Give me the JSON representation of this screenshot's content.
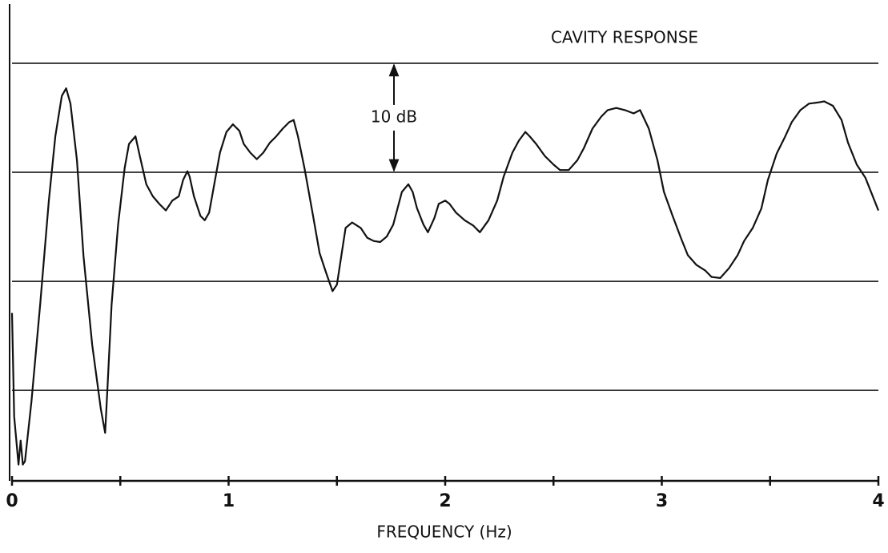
{
  "chart_data": {
    "type": "line",
    "title": "CAVITY RESPONSE",
    "xlabel": "FREQUENCY (Hz)",
    "annotation": {
      "text": "10 dB",
      "from": 0,
      "to": -10
    },
    "color": "#111111",
    "grid": true,
    "xlim": [
      0,
      4
    ],
    "xticks": [
      0,
      1,
      2,
      3,
      4
    ],
    "xminor_ticks": [
      0.5,
      1.5,
      2.5,
      3.5
    ],
    "ylim": [
      -38.3,
      5.8
    ],
    "yticks": [
      0,
      -10,
      -20,
      -30
    ],
    "x": [
      0,
      0.01,
      0.03,
      0.04,
      0.05,
      0.06,
      0.09,
      0.13,
      0.17,
      0.2,
      0.23,
      0.25,
      0.27,
      0.3,
      0.33,
      0.37,
      0.41,
      0.43,
      0.44,
      0.46,
      0.49,
      0.52,
      0.54,
      0.57,
      0.59,
      0.62,
      0.65,
      0.68,
      0.71,
      0.74,
      0.77,
      0.79,
      0.81,
      0.82,
      0.84,
      0.87,
      0.89,
      0.91,
      0.94,
      0.96,
      0.99,
      1.02,
      1.05,
      1.07,
      1.1,
      1.13,
      1.16,
      1.19,
      1.22,
      1.25,
      1.28,
      1.3,
      1.32,
      1.35,
      1.39,
      1.42,
      1.45,
      1.48,
      1.5,
      1.52,
      1.54,
      1.57,
      1.61,
      1.64,
      1.67,
      1.7,
      1.73,
      1.76,
      1.78,
      1.8,
      1.83,
      1.85,
      1.87,
      1.9,
      1.92,
      1.95,
      1.97,
      2,
      2.02,
      2.05,
      2.09,
      2.13,
      2.16,
      2.2,
      2.24,
      2.27,
      2.31,
      2.34,
      2.37,
      2.39,
      2.42,
      2.46,
      2.5,
      2.53,
      2.57,
      2.61,
      2.64,
      2.68,
      2.72,
      2.75,
      2.79,
      2.83,
      2.87,
      2.9,
      2.94,
      2.98,
      3.01,
      3.05,
      3.09,
      3.12,
      3.16,
      3.2,
      3.23,
      3.27,
      3.31,
      3.35,
      3.38,
      3.42,
      3.46,
      3.49,
      3.53,
      3.57,
      3.6,
      3.64,
      3.68,
      3.72,
      3.75,
      3.79,
      3.83,
      3.86,
      3.9,
      3.94,
      3.97,
      4
    ],
    "values": [
      -22.9,
      -32.4,
      -36.8,
      -34.6,
      -36.8,
      -36.5,
      -31.0,
      -22.1,
      -12.6,
      -6.7,
      -3.0,
      -2.3,
      -3.7,
      -8.9,
      -17.7,
      -25.8,
      -31.7,
      -33.9,
      -30.1,
      -22.1,
      -14.8,
      -9.6,
      -7.4,
      -6.7,
      -8.5,
      -11.1,
      -12.2,
      -12.9,
      -13.5,
      -12.6,
      -12.2,
      -10.7,
      -9.9,
      -10.4,
      -12.2,
      -14.0,
      -14.4,
      -13.7,
      -10.4,
      -8.2,
      -6.3,
      -5.6,
      -6.2,
      -7.4,
      -8.2,
      -8.8,
      -8.2,
      -7.3,
      -6.7,
      -6.0,
      -5.4,
      -5.2,
      -6.7,
      -9.6,
      -14.0,
      -17.4,
      -19.2,
      -20.9,
      -20.3,
      -17.7,
      -15.1,
      -14.6,
      -15.1,
      -16.0,
      -16.3,
      -16.4,
      -15.9,
      -14.8,
      -13.3,
      -11.8,
      -11.1,
      -11.8,
      -13.3,
      -14.8,
      -15.5,
      -14.2,
      -12.9,
      -12.6,
      -12.9,
      -13.7,
      -14.4,
      -14.9,
      -15.5,
      -14.4,
      -12.6,
      -10.4,
      -8.2,
      -7.1,
      -6.3,
      -6.7,
      -7.4,
      -8.5,
      -9.3,
      -9.8,
      -9.8,
      -8.9,
      -7.8,
      -6.0,
      -4.9,
      -4.3,
      -4.1,
      -4.3,
      -4.6,
      -4.3,
      -6.0,
      -8.9,
      -11.8,
      -14.0,
      -16.1,
      -17.6,
      -18.5,
      -19.0,
      -19.6,
      -19.7,
      -18.8,
      -17.6,
      -16.3,
      -15.1,
      -13.3,
      -10.7,
      -8.3,
      -6.7,
      -5.4,
      -4.3,
      -3.7,
      -3.6,
      -3.5,
      -3.9,
      -5.2,
      -7.3,
      -9.3,
      -10.5,
      -12.0,
      -13.5
    ]
  }
}
